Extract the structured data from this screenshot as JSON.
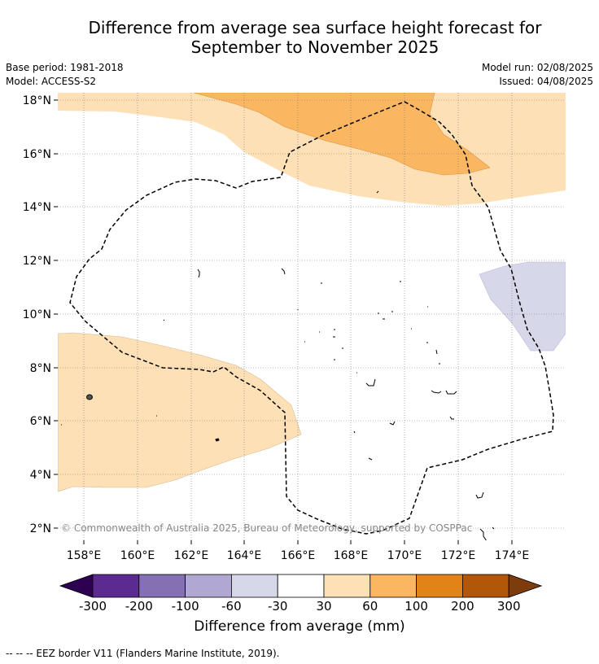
{
  "title_line1": "Difference from average sea surface height forecast for",
  "title_line2": "September to November 2025",
  "meta": {
    "base_period": "Base period: 1981-2018",
    "model": "Model: ACCESS-S2",
    "model_run": "Model run: 02/08/2025",
    "issued": "Issued: 04/08/2025"
  },
  "axes": {
    "lat_labels": [
      "18°N",
      "16°N",
      "14°N",
      "12°N",
      "10°N",
      "8°N",
      "6°N",
      "4°N",
      "2°N"
    ],
    "lon_labels": [
      "158°E",
      "160°E",
      "162°E",
      "164°E",
      "166°E",
      "168°E",
      "170°E",
      "172°E",
      "174°E"
    ]
  },
  "copyright": "© Commonwealth of Australia 2025, Bureau of Meteorology, supported by COSPPac",
  "colorbar": {
    "title": "Difference from average (mm)",
    "ticks": [
      "-300",
      "-200",
      "-100",
      "-60",
      "-30",
      "30",
      "60",
      "100",
      "200",
      "300"
    ],
    "colors": [
      "#2e0052",
      "#5c2b91",
      "#8570b3",
      "#b0a7d3",
      "#d7d7ea",
      "#ffffff",
      "#fde0b6",
      "#fab660",
      "#e28317",
      "#b25709",
      "#7e3b0b"
    ]
  },
  "legend_note": "--  --  -- EEZ border V11 (Flanders Marine Institute, 2019)."
}
